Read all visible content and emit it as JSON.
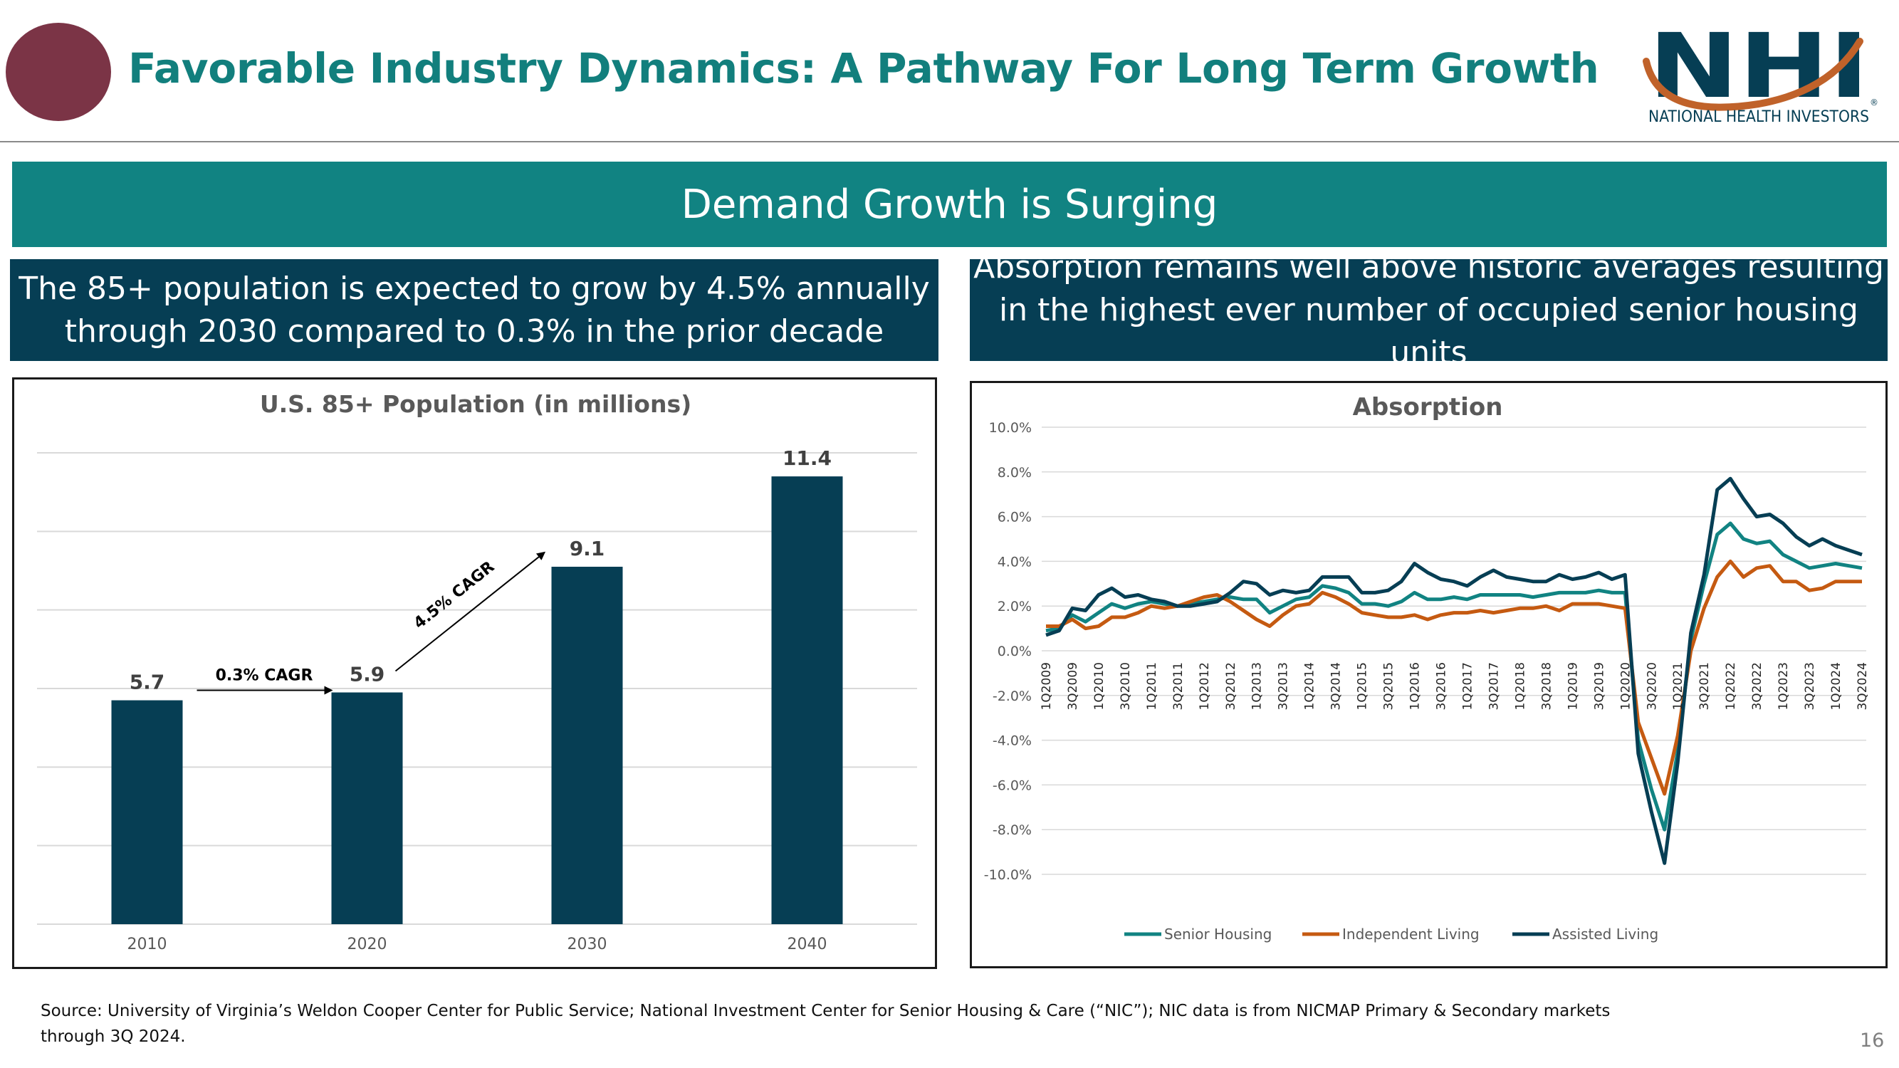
{
  "header": {
    "title": "Favorable Industry Dynamics: A Pathway For Long Term Growth",
    "logo": {
      "letters": "NHI",
      "name": "NATIONAL HEALTH INVESTORS",
      "mark": "®"
    }
  },
  "banner": {
    "text": "Demand Growth is Surging"
  },
  "left_panel": {
    "subtitle": "The 85+ population is expected to grow by 4.5% annually through 2030 compared to 0.3% in the prior decade"
  },
  "right_panel": {
    "subtitle": "Absorption remains well above historic averages resulting in the highest ever number of occupied senior housing units"
  },
  "colors": {
    "teal": "#118382",
    "navy": "#063e54",
    "maroon": "#7b3446",
    "orange": "#c55a11",
    "logo_orange": "#c0622a"
  },
  "chart_data": [
    {
      "type": "bar",
      "title": "U.S. 85+ Population (in millions)",
      "categories": [
        "2010",
        "2020",
        "2030",
        "2040"
      ],
      "values": [
        5.7,
        5.9,
        9.1,
        11.4
      ],
      "data_labels": [
        "5.7",
        "5.9",
        "9.1",
        "11.4"
      ],
      "ylim": [
        0,
        12
      ],
      "grid": true,
      "annotations": [
        {
          "text": "0.3% CAGR",
          "from": "2010",
          "to": "2020"
        },
        {
          "text": "4.5% CAGR",
          "from": "2020",
          "to": "2030"
        }
      ]
    },
    {
      "type": "line",
      "title": "Absorption",
      "x": [
        "1Q2009",
        "2Q2009",
        "3Q2009",
        "4Q2009",
        "1Q2010",
        "2Q2010",
        "3Q2010",
        "4Q2010",
        "1Q2011",
        "2Q2011",
        "3Q2011",
        "4Q2011",
        "1Q2012",
        "2Q2012",
        "3Q2012",
        "4Q2012",
        "1Q2013",
        "2Q2013",
        "3Q2013",
        "4Q2013",
        "1Q2014",
        "2Q2014",
        "3Q2014",
        "4Q2014",
        "1Q2015",
        "2Q2015",
        "3Q2015",
        "4Q2015",
        "1Q2016",
        "2Q2016",
        "3Q2016",
        "4Q2016",
        "1Q2017",
        "2Q2017",
        "3Q2017",
        "4Q2017",
        "1Q2018",
        "2Q2018",
        "3Q2018",
        "4Q2018",
        "1Q2019",
        "2Q2019",
        "3Q2019",
        "4Q2019",
        "1Q2020",
        "2Q2020",
        "3Q2020",
        "4Q2020",
        "1Q2021",
        "2Q2021",
        "3Q2021",
        "4Q2021",
        "1Q2022",
        "2Q2022",
        "3Q2022",
        "4Q2022",
        "1Q2023",
        "2Q2023",
        "3Q2023",
        "4Q2023",
        "1Q2024",
        "2Q2024",
        "3Q2024"
      ],
      "x_tick_labels": [
        "1Q2009",
        "3Q2009",
        "1Q2010",
        "3Q2010",
        "1Q2011",
        "3Q2011",
        "1Q2012",
        "3Q2012",
        "1Q2013",
        "3Q2013",
        "1Q2014",
        "3Q2014",
        "1Q2015",
        "3Q2015",
        "1Q2016",
        "3Q2016",
        "1Q2017",
        "3Q2017",
        "1Q2018",
        "3Q2018",
        "1Q2019",
        "3Q2019",
        "1Q2020",
        "3Q2020",
        "1Q2021",
        "3Q2021",
        "1Q2022",
        "3Q2022",
        "1Q2023",
        "3Q2023",
        "1Q2024",
        "3Q2024"
      ],
      "y_tick_labels": [
        "10.0%",
        "8.0%",
        "6.0%",
        "4.0%",
        "2.0%",
        "0.0%",
        "-2.0%",
        "-4.0%",
        "-6.0%",
        "-8.0%",
        "-10.0%"
      ],
      "ylim": [
        -10,
        10
      ],
      "grid": true,
      "legend": "bottom",
      "series": [
        {
          "name": "Senior Housing",
          "color": "#118382",
          "values": [
            0.9,
            1.0,
            1.6,
            1.3,
            1.7,
            2.1,
            1.9,
            2.1,
            2.2,
            2.1,
            2.0,
            2.1,
            2.2,
            2.3,
            2.4,
            2.3,
            2.3,
            1.7,
            2.0,
            2.3,
            2.4,
            2.9,
            2.8,
            2.6,
            2.1,
            2.1,
            2.0,
            2.2,
            2.6,
            2.3,
            2.3,
            2.4,
            2.3,
            2.5,
            2.5,
            2.5,
            2.5,
            2.4,
            2.5,
            2.6,
            2.6,
            2.6,
            2.7,
            2.6,
            2.6,
            -4.0,
            -6.2,
            -8.0,
            -4.5,
            0.5,
            3.0,
            5.2,
            5.7,
            5.0,
            4.8,
            4.9,
            4.3,
            4.0,
            3.7,
            3.8,
            3.9,
            3.8,
            3.7
          ]
        },
        {
          "name": "Independent Living",
          "color": "#c55a11",
          "values": [
            1.1,
            1.1,
            1.4,
            1.0,
            1.1,
            1.5,
            1.5,
            1.7,
            2.0,
            1.9,
            2.0,
            2.2,
            2.4,
            2.5,
            2.2,
            1.8,
            1.4,
            1.1,
            1.6,
            2.0,
            2.1,
            2.6,
            2.4,
            2.1,
            1.7,
            1.6,
            1.5,
            1.5,
            1.6,
            1.4,
            1.6,
            1.7,
            1.7,
            1.8,
            1.7,
            1.8,
            1.9,
            1.9,
            2.0,
            1.8,
            2.1,
            2.1,
            2.1,
            2.0,
            1.9,
            -3.2,
            -4.8,
            -6.4,
            -3.8,
            0.0,
            1.9,
            3.3,
            4.0,
            3.3,
            3.7,
            3.8,
            3.1,
            3.1,
            2.7,
            2.8,
            3.1,
            3.1,
            3.1
          ]
        },
        {
          "name": "Assisted Living",
          "color": "#063e54",
          "values": [
            0.7,
            0.9,
            1.9,
            1.8,
            2.5,
            2.8,
            2.4,
            2.5,
            2.3,
            2.2,
            2.0,
            2.0,
            2.1,
            2.2,
            2.6,
            3.1,
            3.0,
            2.5,
            2.7,
            2.6,
            2.7,
            3.3,
            3.3,
            3.3,
            2.6,
            2.6,
            2.7,
            3.1,
            3.9,
            3.5,
            3.2,
            3.1,
            2.9,
            3.3,
            3.6,
            3.3,
            3.2,
            3.1,
            3.1,
            3.4,
            3.2,
            3.3,
            3.5,
            3.2,
            3.4,
            -4.6,
            -7.2,
            -9.5,
            -5.0,
            0.8,
            3.4,
            7.2,
            7.7,
            6.8,
            6.0,
            6.1,
            5.7,
            5.1,
            4.7,
            5.0,
            4.7,
            4.5,
            4.3
          ]
        }
      ]
    }
  ],
  "footer": {
    "source": "Source:  University of Virginia’s Weldon Cooper Center for Public Service; National Investment Center for Senior Housing & Care (“NIC”); NIC data is from NICMAP Primary & Secondary markets through 3Q 2024.",
    "page_number": "16"
  }
}
